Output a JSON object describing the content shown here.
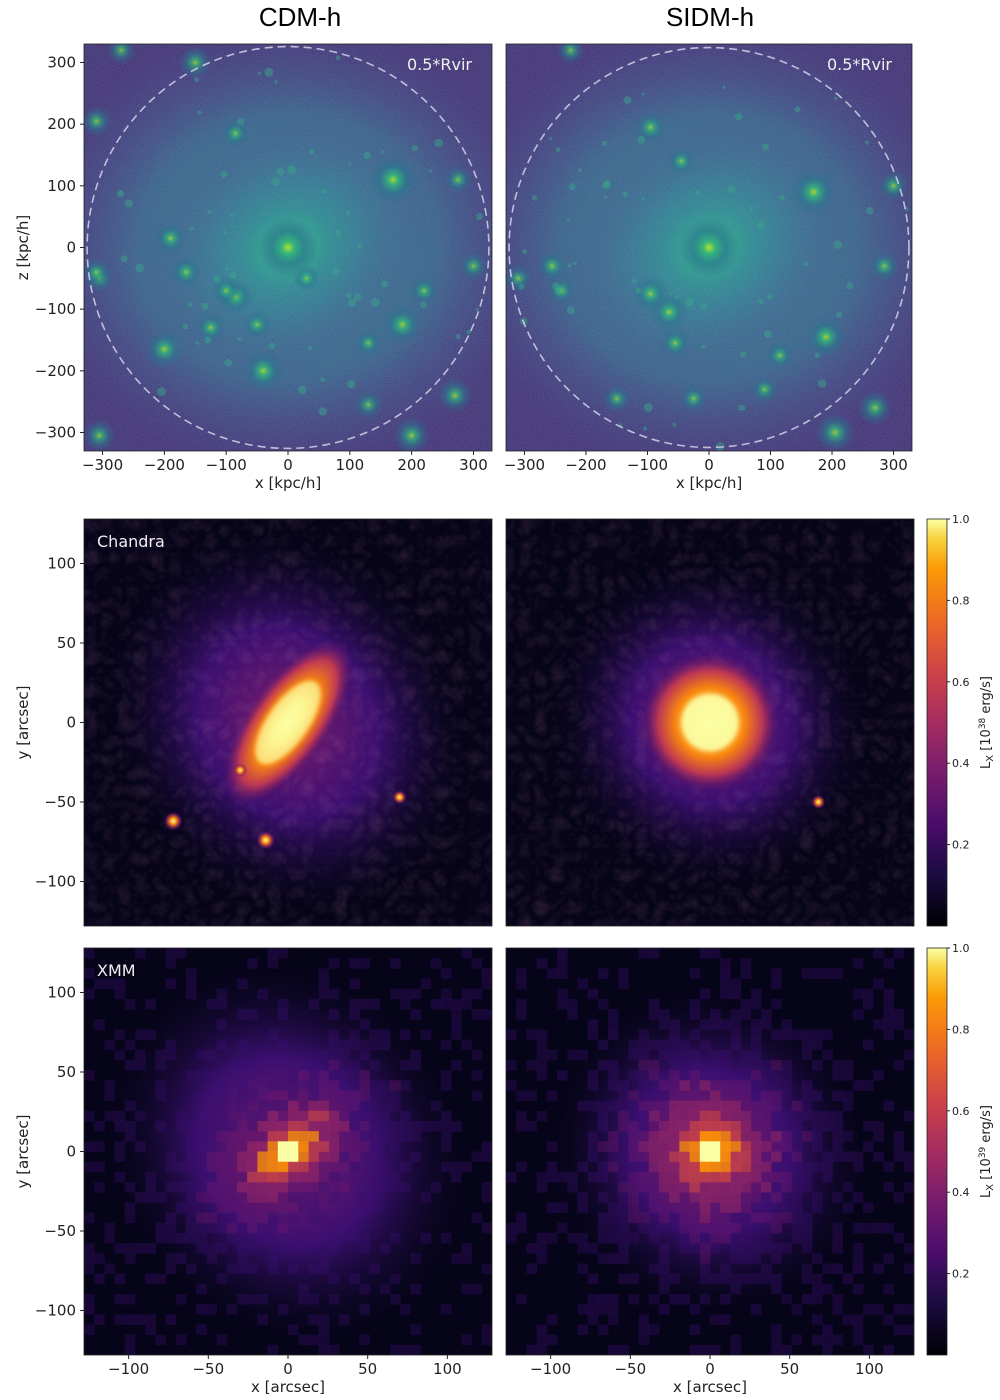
{
  "column_titles": [
    "CDM-h",
    "SIDM-h"
  ],
  "chart_data": [
    {
      "type": "heatmap",
      "title": "CDM-h",
      "panel_label": "0.5*Rvir",
      "xlabel": "x [kpc/h]",
      "ylabel": "z [kpc/h]",
      "xlim": [
        -330,
        330
      ],
      "ylim": [
        -330,
        330
      ],
      "xticks": [
        -300,
        -200,
        -100,
        0,
        100,
        200,
        300
      ],
      "yticks": [
        -300,
        -200,
        -100,
        0,
        100,
        200,
        300
      ],
      "colormap": "viridis",
      "circle_radius": 325,
      "subhalos": [
        [
          0,
          0,
          1.0
        ],
        [
          170,
          110,
          0.75
        ],
        [
          -40,
          -200,
          0.6
        ],
        [
          -200,
          -165,
          0.55
        ],
        [
          185,
          -125,
          0.55
        ],
        [
          -85,
          -80,
          0.45
        ],
        [
          -190,
          15,
          0.4
        ],
        [
          -125,
          -130,
          0.35
        ],
        [
          200,
          -305,
          0.5
        ],
        [
          -165,
          -40,
          0.35
        ],
        [
          -310,
          205,
          0.35
        ],
        [
          -305,
          -50,
          0.3
        ],
        [
          -150,
          300,
          0.4
        ],
        [
          -85,
          185,
          0.3
        ],
        [
          -50,
          -125,
          0.3
        ],
        [
          270,
          -240,
          0.45
        ],
        [
          275,
          110,
          0.3
        ],
        [
          -270,
          320,
          0.3
        ],
        [
          -305,
          -305,
          0.4
        ],
        [
          30,
          -50,
          0.25
        ],
        [
          -100,
          -70,
          0.3
        ],
        [
          220,
          -70,
          0.3
        ],
        [
          130,
          -255,
          0.3
        ],
        [
          300,
          -30,
          0.3
        ],
        [
          -310,
          -40,
          0.3
        ],
        [
          130,
          -155,
          0.25
        ]
      ]
    },
    {
      "type": "heatmap",
      "title": "SIDM-h",
      "panel_label": "0.5*Rvir",
      "xlabel": "x [kpc/h]",
      "ylabel": "",
      "xlim": [
        -330,
        330
      ],
      "ylim": [
        -330,
        330
      ],
      "xticks": [
        -300,
        -200,
        -100,
        0,
        100,
        200,
        300
      ],
      "colormap": "viridis",
      "circle_radius": 325,
      "subhalos": [
        [
          0,
          0,
          1.0
        ],
        [
          170,
          90,
          0.7
        ],
        [
          -65,
          -105,
          0.5
        ],
        [
          -95,
          -75,
          0.45
        ],
        [
          190,
          -145,
          0.6
        ],
        [
          -255,
          -30,
          0.35
        ],
        [
          -95,
          195,
          0.4
        ],
        [
          -55,
          -155,
          0.35
        ],
        [
          205,
          -300,
          0.55
        ],
        [
          270,
          -260,
          0.45
        ],
        [
          285,
          -30,
          0.35
        ],
        [
          -240,
          -70,
          0.3
        ],
        [
          -45,
          140,
          0.3
        ],
        [
          -310,
          -50,
          0.3
        ],
        [
          -150,
          -245,
          0.3
        ],
        [
          115,
          -175,
          0.3
        ],
        [
          -225,
          320,
          0.3
        ],
        [
          300,
          100,
          0.35
        ],
        [
          -25,
          -245,
          0.3
        ],
        [
          90,
          -230,
          0.3
        ]
      ]
    },
    {
      "type": "heatmap",
      "title": "",
      "panel_label": "Chandra",
      "xlabel": "",
      "ylabel": "y [arcsec]",
      "xlim": [
        -128,
        128
      ],
      "ylim": [
        -128,
        128
      ],
      "yticks": [
        -100,
        -50,
        0,
        50,
        100
      ],
      "colormap": "inferno",
      "morphology": "elongated",
      "clumps": [
        [
          -72,
          -62,
          0.9
        ],
        [
          -14,
          -74,
          0.9
        ],
        [
          70,
          -47,
          0.5
        ],
        [
          -30,
          -30,
          0.5
        ]
      ]
    },
    {
      "type": "heatmap",
      "title": "",
      "panel_label": "",
      "xlabel": "",
      "ylabel": "",
      "xlim": [
        -128,
        128
      ],
      "ylim": [
        -128,
        128
      ],
      "colormap": "inferno",
      "morphology": "round",
      "colorbar": {
        "label_main": "L",
        "label_sub": "X",
        "label_rest": " [10",
        "label_exp": "38",
        "label_unit": " erg/s]",
        "range": [
          0,
          1.0
        ],
        "ticks": [
          "0.2",
          "0.4",
          "0.6",
          "0.8",
          "1.0"
        ]
      },
      "clumps": [
        [
          68,
          -50,
          0.5
        ]
      ]
    },
    {
      "type": "heatmap",
      "title": "",
      "panel_label": "XMM",
      "xlabel": "x [arcsec]",
      "ylabel": "y [arcsec]",
      "xlim": [
        -128,
        128
      ],
      "ylim": [
        -128,
        128
      ],
      "xticks": [
        -100,
        -50,
        0,
        50,
        100
      ],
      "yticks": [
        -100,
        -50,
        0,
        50,
        100
      ],
      "colormap": "inferno",
      "morphology": "elongated"
    },
    {
      "type": "heatmap",
      "title": "",
      "panel_label": "",
      "xlabel": "x [arcsec]",
      "ylabel": "",
      "xlim": [
        -128,
        128
      ],
      "ylim": [
        -128,
        128
      ],
      "xticks": [
        -100,
        -50,
        0,
        50,
        100
      ],
      "colormap": "inferno",
      "morphology": "round",
      "colorbar": {
        "label_main": "L",
        "label_sub": "X",
        "label_rest": " [10",
        "label_exp": "39",
        "label_unit": " erg/s]",
        "range": [
          0,
          1.0
        ],
        "ticks": [
          "0.2",
          "0.4",
          "0.6",
          "0.8",
          "1.0"
        ]
      }
    }
  ]
}
